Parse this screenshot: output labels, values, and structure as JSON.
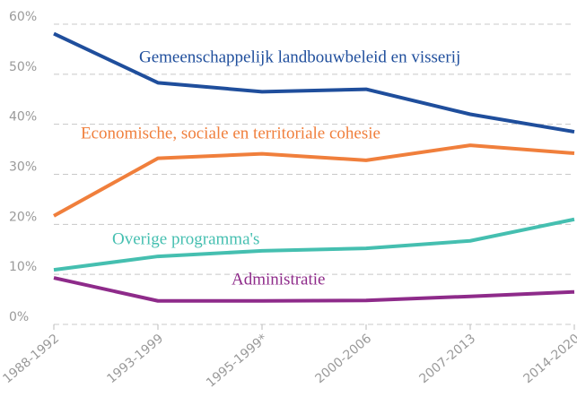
{
  "chart_data": {
    "type": "line",
    "categories": [
      "1988-1992",
      "1993-1999",
      "1995-1999*",
      "2000-2006",
      "2007-2013",
      "2014-2020"
    ],
    "series": [
      {
        "name": "Gemeenschappelijk landbouwbeleid en visserij",
        "color": "#1f4e9c",
        "values": [
          58.1,
          48.3,
          46.5,
          47.0,
          42.0,
          38.5
        ]
      },
      {
        "name": "Economische, sociale en territoriale cohesie",
        "color": "#f07f3c",
        "values": [
          21.7,
          33.2,
          34.1,
          32.8,
          35.8,
          34.2
        ]
      },
      {
        "name": "Overige programma's",
        "color": "#45bfb0",
        "values": [
          10.9,
          13.6,
          14.7,
          15.2,
          16.7,
          21.0
        ]
      },
      {
        "name": "Administratie",
        "color": "#8e2b8a",
        "values": [
          9.3,
          4.7,
          4.7,
          4.8,
          5.6,
          6.5
        ]
      }
    ],
    "ylim": [
      0,
      60
    ],
    "yticks": [
      {
        "value": 0,
        "label": "0%"
      },
      {
        "value": 10,
        "label": "10%"
      },
      {
        "value": 20,
        "label": "20%"
      },
      {
        "value": 30,
        "label": "30%"
      },
      {
        "value": 40,
        "label": "40%"
      },
      {
        "value": 50,
        "label": "50%"
      },
      {
        "value": 60,
        "label": "60%"
      }
    ],
    "grid": true
  }
}
